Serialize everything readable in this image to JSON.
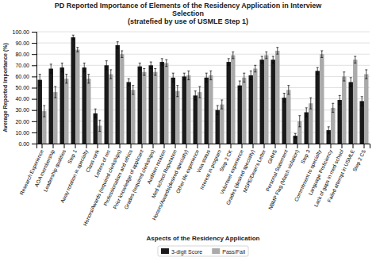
{
  "chart_data": {
    "type": "bar",
    "title": "PD Reported Importance of Elements of the Residency Application in Interview\nSelection\n(stratefied by use of USMLE Step 1)",
    "xlabel": "Aspects of the Residency Application",
    "ylabel": "Average Reported Importance (%)",
    "categories": [
      "Research Experience",
      "AOA membership",
      "Leadership qualities",
      "Step 1",
      "Away rotation in specialty",
      "Class rank",
      "Letters of rec",
      "Honors/Awards (required clerkships)",
      "Professionalism and ethics",
      "Prior knowledge of applicant",
      "Grades (required clerkships)",
      "Audition rotation",
      "Med school Reputation",
      "Honors/Awards(desired specialty)",
      "Other life experience",
      "Visa status",
      "Interest in program",
      "Step 2 CK",
      "Volunteer experience",
      "Grades (desired specialty)",
      "MSPE/Dean's Letter",
      "GHHS",
      "Personal Statement",
      "NBMP Flag (Match violation)",
      "Step 3",
      "Commitment to specialty",
      "Language Proficiency",
      "Lack of gaps in med school",
      "Failed attempt in USMLE",
      "Step 2 CS"
    ],
    "series": [
      {
        "name": "3-digit Score",
        "color": "#1a1a1a",
        "values": [
          57,
          67,
          68,
          95,
          68,
          27,
          70,
          88,
          55,
          69,
          70,
          73,
          59,
          60,
          43,
          59,
          30,
          73,
          52,
          61,
          75,
          75,
          41,
          7,
          28,
          65,
          12,
          39,
          55,
          38
        ],
        "errors": [
          5,
          4,
          4,
          2,
          4,
          4,
          4,
          3,
          3,
          3,
          3,
          3,
          4,
          3,
          4,
          4,
          4,
          3,
          4,
          4,
          3,
          3,
          4,
          2,
          4,
          3,
          3,
          4,
          4,
          4
        ]
      },
      {
        "name": "Pass/Fail",
        "color": "#aaaaaa",
        "values": [
          29,
          46,
          58,
          84,
          58,
          16,
          62,
          80,
          48,
          64,
          64,
          72,
          47,
          61,
          46,
          61,
          35,
          79,
          59,
          67,
          79,
          83,
          48,
          20,
          36,
          80,
          32,
          60,
          75,
          62
        ],
        "errors": [
          5,
          5,
          4,
          2,
          4,
          5,
          4,
          3,
          4,
          3,
          3,
          3,
          5,
          4,
          5,
          4,
          4,
          3,
          4,
          3,
          3,
          3,
          4,
          5,
          5,
          3,
          4,
          4,
          3,
          4
        ]
      }
    ],
    "ylim": [
      0,
      100
    ],
    "yticks": [
      {
        "value": 0,
        "label": "0.00"
      },
      {
        "value": 10,
        "label": "10.00"
      },
      {
        "value": 20,
        "label": "20.00"
      },
      {
        "value": 30,
        "label": "30.00"
      },
      {
        "value": 40,
        "label": "40.00"
      },
      {
        "value": 50,
        "label": "50.00"
      },
      {
        "value": 60,
        "label": "60.00"
      },
      {
        "value": 70,
        "label": "70.00"
      },
      {
        "value": 80,
        "label": "80.00"
      },
      {
        "value": 90,
        "label": "90.00"
      },
      {
        "value": 100,
        "label": "100.00"
      }
    ],
    "grid": true,
    "legend": "bottom"
  }
}
